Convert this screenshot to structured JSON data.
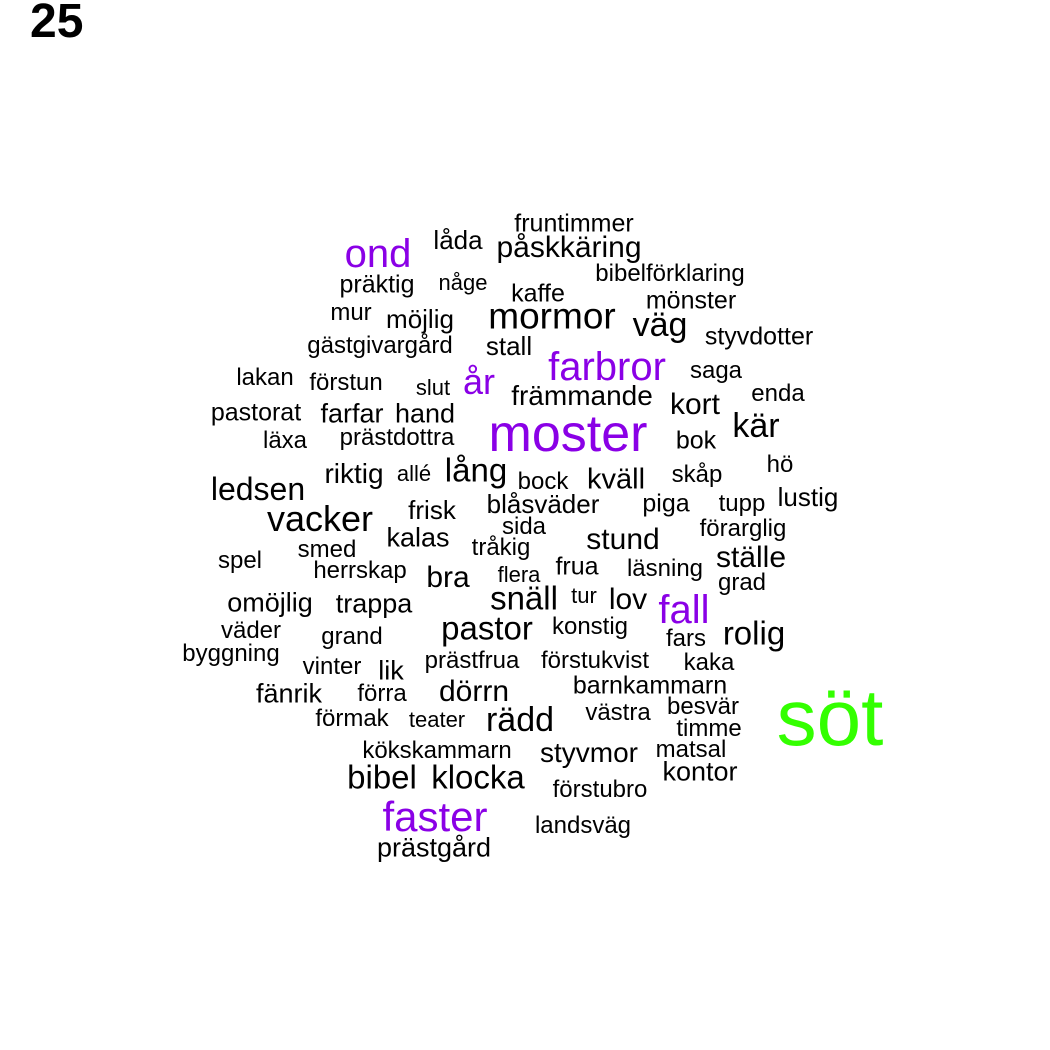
{
  "panel_label": "25",
  "colors": {
    "default": "#000000",
    "highlight": "#8a00e6",
    "top": "#33ff00"
  },
  "words": [
    {
      "text": "fruntimmer",
      "emphasis": "normal"
    },
    {
      "text": "låda",
      "emphasis": "normal"
    },
    {
      "text": "påskkäring",
      "emphasis": "normal"
    },
    {
      "text": "ond",
      "emphasis": "highlight"
    },
    {
      "text": "bibelförklaring",
      "emphasis": "normal"
    },
    {
      "text": "präktig",
      "emphasis": "normal"
    },
    {
      "text": "någe",
      "emphasis": "normal"
    },
    {
      "text": "kaffe",
      "emphasis": "normal"
    },
    {
      "text": "mönster",
      "emphasis": "normal"
    },
    {
      "text": "mur",
      "emphasis": "normal"
    },
    {
      "text": "möjlig",
      "emphasis": "normal"
    },
    {
      "text": "mormor",
      "emphasis": "normal"
    },
    {
      "text": "väg",
      "emphasis": "normal"
    },
    {
      "text": "styvdotter",
      "emphasis": "normal"
    },
    {
      "text": "gästgivargård",
      "emphasis": "normal"
    },
    {
      "text": "stall",
      "emphasis": "normal"
    },
    {
      "text": "farbror",
      "emphasis": "highlight"
    },
    {
      "text": "saga",
      "emphasis": "normal"
    },
    {
      "text": "lakan",
      "emphasis": "normal"
    },
    {
      "text": "förstun",
      "emphasis": "normal"
    },
    {
      "text": "slut",
      "emphasis": "normal"
    },
    {
      "text": "år",
      "emphasis": "highlight"
    },
    {
      "text": "främmande",
      "emphasis": "normal"
    },
    {
      "text": "enda",
      "emphasis": "normal"
    },
    {
      "text": "pastorat",
      "emphasis": "normal"
    },
    {
      "text": "farfar",
      "emphasis": "normal"
    },
    {
      "text": "hand",
      "emphasis": "normal"
    },
    {
      "text": "kort",
      "emphasis": "normal"
    },
    {
      "text": "moster",
      "emphasis": "highlight"
    },
    {
      "text": "kär",
      "emphasis": "normal"
    },
    {
      "text": "läxa",
      "emphasis": "normal"
    },
    {
      "text": "prästdottra",
      "emphasis": "normal"
    },
    {
      "text": "bok",
      "emphasis": "normal"
    },
    {
      "text": "hö",
      "emphasis": "normal"
    },
    {
      "text": "riktig",
      "emphasis": "normal"
    },
    {
      "text": "allé",
      "emphasis": "normal"
    },
    {
      "text": "lång",
      "emphasis": "normal"
    },
    {
      "text": "bock",
      "emphasis": "normal"
    },
    {
      "text": "kväll",
      "emphasis": "normal"
    },
    {
      "text": "skåp",
      "emphasis": "normal"
    },
    {
      "text": "ledsen",
      "emphasis": "normal"
    },
    {
      "text": "lustig",
      "emphasis": "normal"
    },
    {
      "text": "blåsväder",
      "emphasis": "normal"
    },
    {
      "text": "piga",
      "emphasis": "normal"
    },
    {
      "text": "tupp",
      "emphasis": "normal"
    },
    {
      "text": "frisk",
      "emphasis": "normal"
    },
    {
      "text": "vacker",
      "emphasis": "normal"
    },
    {
      "text": "sida",
      "emphasis": "normal"
    },
    {
      "text": "förarglig",
      "emphasis": "normal"
    },
    {
      "text": "kalas",
      "emphasis": "normal"
    },
    {
      "text": "stund",
      "emphasis": "normal"
    },
    {
      "text": "smed",
      "emphasis": "normal"
    },
    {
      "text": "tråkig",
      "emphasis": "normal"
    },
    {
      "text": "ställe",
      "emphasis": "normal"
    },
    {
      "text": "spel",
      "emphasis": "normal"
    },
    {
      "text": "herrskap",
      "emphasis": "normal"
    },
    {
      "text": "bra",
      "emphasis": "normal"
    },
    {
      "text": "flera",
      "emphasis": "normal"
    },
    {
      "text": "frua",
      "emphasis": "normal"
    },
    {
      "text": "läsning",
      "emphasis": "normal"
    },
    {
      "text": "grad",
      "emphasis": "normal"
    },
    {
      "text": "omöjlig",
      "emphasis": "normal"
    },
    {
      "text": "trappa",
      "emphasis": "normal"
    },
    {
      "text": "snäll",
      "emphasis": "normal"
    },
    {
      "text": "tur",
      "emphasis": "normal"
    },
    {
      "text": "lov",
      "emphasis": "normal"
    },
    {
      "text": "fall",
      "emphasis": "highlight"
    },
    {
      "text": "väder",
      "emphasis": "normal"
    },
    {
      "text": "pastor",
      "emphasis": "normal"
    },
    {
      "text": "konstig",
      "emphasis": "normal"
    },
    {
      "text": "grand",
      "emphasis": "normal"
    },
    {
      "text": "fars",
      "emphasis": "normal"
    },
    {
      "text": "rolig",
      "emphasis": "normal"
    },
    {
      "text": "byggning",
      "emphasis": "normal"
    },
    {
      "text": "prästfrua",
      "emphasis": "normal"
    },
    {
      "text": "förstukvist",
      "emphasis": "normal"
    },
    {
      "text": "vinter",
      "emphasis": "normal"
    },
    {
      "text": "lik",
      "emphasis": "normal"
    },
    {
      "text": "kaka",
      "emphasis": "normal"
    },
    {
      "text": "barnkammarn",
      "emphasis": "normal"
    },
    {
      "text": "fänrik",
      "emphasis": "normal"
    },
    {
      "text": "förra",
      "emphasis": "normal"
    },
    {
      "text": "dörrn",
      "emphasis": "normal"
    },
    {
      "text": "söt",
      "emphasis": "top"
    },
    {
      "text": "besvär",
      "emphasis": "normal"
    },
    {
      "text": "förmak",
      "emphasis": "normal"
    },
    {
      "text": "teater",
      "emphasis": "normal"
    },
    {
      "text": "rädd",
      "emphasis": "normal"
    },
    {
      "text": "västra",
      "emphasis": "normal"
    },
    {
      "text": "timme",
      "emphasis": "normal"
    },
    {
      "text": "kökskammarn",
      "emphasis": "normal"
    },
    {
      "text": "styvmor",
      "emphasis": "normal"
    },
    {
      "text": "matsal",
      "emphasis": "normal"
    },
    {
      "text": "bibel",
      "emphasis": "normal"
    },
    {
      "text": "klocka",
      "emphasis": "normal"
    },
    {
      "text": "kontor",
      "emphasis": "normal"
    },
    {
      "text": "förstubro",
      "emphasis": "normal"
    },
    {
      "text": "faster",
      "emphasis": "highlight"
    },
    {
      "text": "landsväg",
      "emphasis": "normal"
    },
    {
      "text": "prästgård",
      "emphasis": "normal"
    }
  ]
}
